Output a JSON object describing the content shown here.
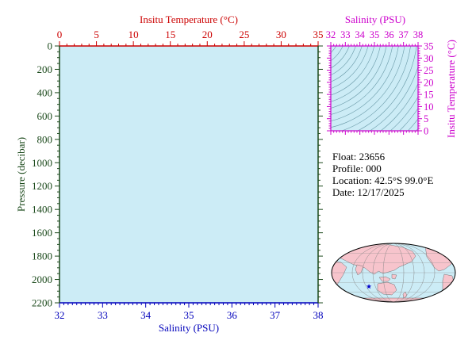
{
  "colors": {
    "plot_bg": "#ccecf6",
    "temperature": "#cc0000",
    "salinity_profile": "#0000bb",
    "pressure": "#1c4a1c",
    "ts_axis": "#cc00cc",
    "contour": "#6a9aa8",
    "land": "#f7c4cc",
    "ocean": "#ccecf6",
    "float_marker": "#0000cc"
  },
  "chart_data": [
    {
      "type": "line",
      "id": "profile",
      "series": [],
      "top_axis": {
        "label": "Insitu Temperature (°C)",
        "range": [
          0,
          35
        ],
        "ticks": [
          0,
          5,
          10,
          15,
          20,
          25,
          30,
          35
        ],
        "tick_labels": [
          "0",
          "5",
          "10",
          "15",
          "20",
          "25",
          "30",
          "35"
        ]
      },
      "bottom_axis": {
        "label": "Salinity (PSU)",
        "range": [
          32,
          38
        ],
        "ticks": [
          32,
          33,
          34,
          35,
          36,
          37,
          38
        ],
        "tick_labels": [
          "32",
          "33",
          "34",
          "35",
          "36",
          "37",
          "38"
        ]
      },
      "left_axis": {
        "label": "Pressure (decibar)",
        "range": [
          0,
          2200
        ],
        "reversed": true,
        "ticks": [
          0,
          200,
          400,
          600,
          800,
          1000,
          1200,
          1400,
          1600,
          1800,
          2000,
          2200
        ],
        "tick_labels": [
          "0",
          "200",
          "400",
          "600",
          "800",
          "1000",
          "1200",
          "1400",
          "1600",
          "1800",
          "2000",
          "2200"
        ]
      },
      "grid": false
    },
    {
      "type": "line",
      "id": "ts_diagram",
      "series": [],
      "top_axis": {
        "label": "Salinity (PSU)",
        "range": [
          32,
          38
        ],
        "ticks": [
          32,
          33,
          34,
          35,
          36,
          37,
          38
        ],
        "tick_labels": [
          "32",
          "33",
          "34",
          "35",
          "36",
          "37",
          "38"
        ]
      },
      "right_axis": {
        "label": "Insitu Temperature (°C)",
        "range": [
          0,
          35
        ],
        "ticks": [
          0,
          5,
          10,
          15,
          20,
          25,
          30,
          35
        ],
        "tick_labels": [
          "0",
          "5",
          "10",
          "15",
          "20",
          "25",
          "30",
          "35"
        ]
      },
      "background": "density contours",
      "grid": false
    }
  ],
  "float_info": {
    "float_line": "Float:  23656",
    "profile_line": "Profile:  000",
    "location_line": "Location:  42.5°S  99.0°E",
    "date_line": "Date:  12/17/2025"
  },
  "map": {
    "float_lat": -42.5,
    "float_lon": 99.0,
    "central_lon": 180,
    "marker": "star"
  }
}
